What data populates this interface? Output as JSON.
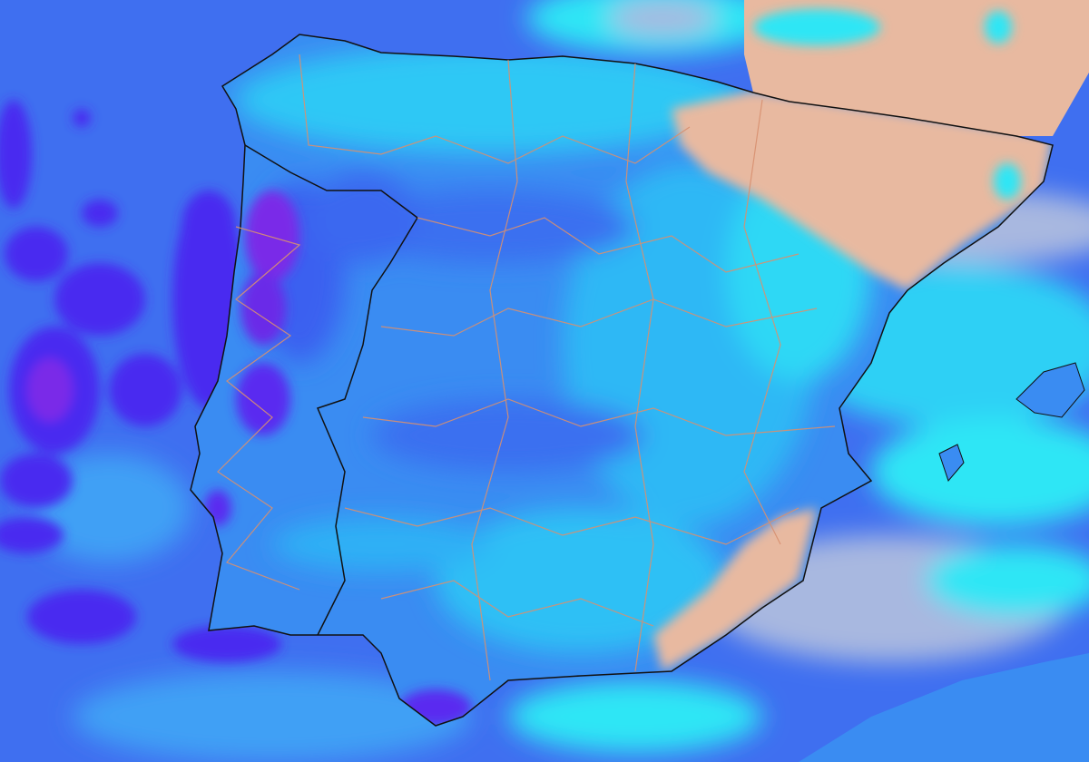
{
  "map": {
    "region": "",
    "colors": {
      "sea_base": "#3f6ff0",
      "light_precip": "#2fe6f5",
      "medium_precip": "#3a8cf2",
      "heavy_precip": "#4a2cf0",
      "very_heavy_precip": "#7a2ce8",
      "dry_land": "#e8b9a0",
      "dry_sea": "#a8b8e0",
      "country_border": "#111111",
      "province_border": "#d89070"
    },
    "layers": [
      "precipitation",
      "relief-shading",
      "country-borders",
      "province-borders"
    ]
  }
}
